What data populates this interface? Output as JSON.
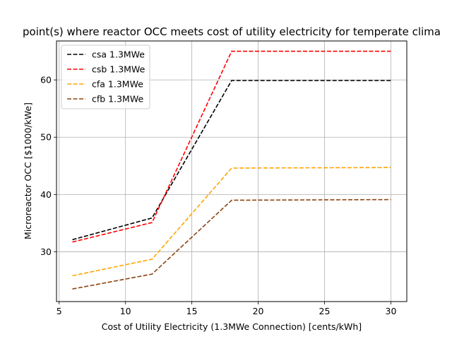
{
  "chart_data": {
    "type": "line",
    "title": "point(s) where reactor OCC meets cost of utility electricity for temperate clima",
    "xlabel": "Cost of Utility Electricity (1.3MWe Connection) [cents/kWh]",
    "ylabel": "Microreactor OCC [$1000/kWe]",
    "xlim": [
      4.8,
      31.2
    ],
    "ylim": [
      21.3,
      66.8
    ],
    "xticks": [
      5,
      10,
      15,
      20,
      25,
      30
    ],
    "yticks": [
      30,
      40,
      50,
      60
    ],
    "grid": true,
    "legend_position": "top-left",
    "x": [
      6,
      12,
      18,
      30
    ],
    "series": [
      {
        "name": "csa 1.3MWe",
        "color": "#000000",
        "dash": "dashed",
        "values": [
          32.1,
          35.9,
          59.9,
          59.9
        ]
      },
      {
        "name": "csb 1.3MWe",
        "color": "#ff0000",
        "dash": "dashed",
        "values": [
          31.7,
          35.1,
          65.0,
          65.0
        ]
      },
      {
        "name": "cfa 1.3MWe",
        "color": "#ffa500",
        "dash": "dashed",
        "values": [
          25.8,
          28.7,
          44.6,
          44.7
        ]
      },
      {
        "name": "cfb 1.3MWe",
        "color": "#8b4513",
        "dash": "dashed",
        "values": [
          23.5,
          26.1,
          39.0,
          39.1
        ]
      }
    ]
  }
}
